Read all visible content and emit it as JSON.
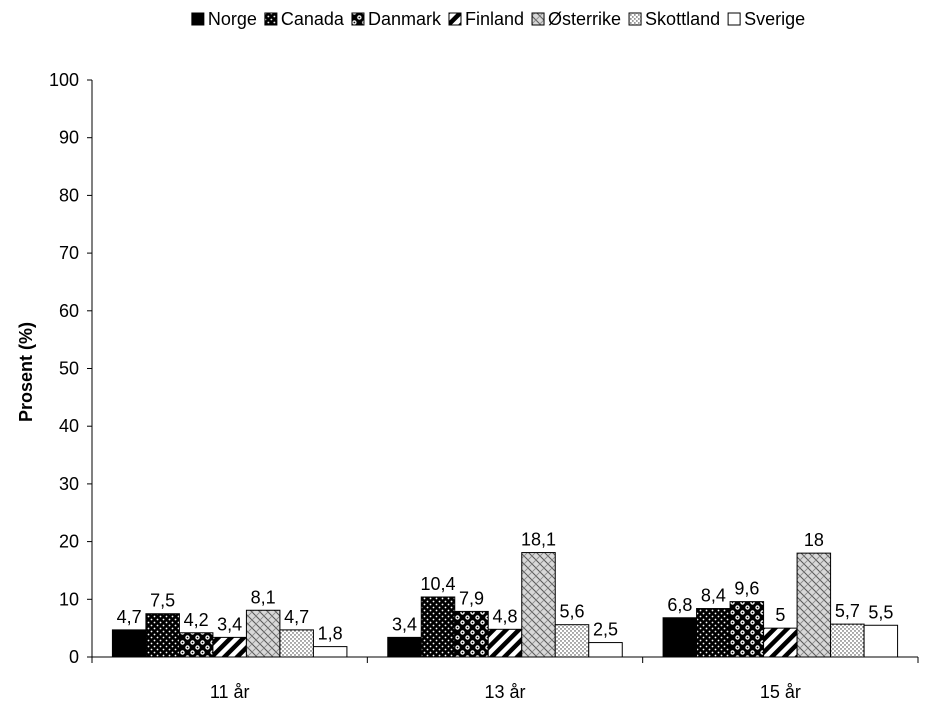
{
  "chart_data": {
    "type": "bar",
    "categories": [
      "11 år",
      "13 år",
      "15 år"
    ],
    "series": [
      {
        "name": "Norge",
        "values": [
          4.7,
          3.4,
          6.8
        ],
        "labels": [
          "4,7",
          "3,4",
          "6,8"
        ],
        "pattern": "solid-black"
      },
      {
        "name": "Canada",
        "values": [
          7.5,
          10.4,
          8.4
        ],
        "labels": [
          "7,5",
          "10,4",
          "8,4"
        ],
        "pattern": "dots-on-black"
      },
      {
        "name": "Danmark",
        "values": [
          4.2,
          7.9,
          9.6
        ],
        "labels": [
          "4,2",
          "7,9",
          "9,6"
        ],
        "pattern": "checker-circles"
      },
      {
        "name": "Finland",
        "values": [
          3.4,
          4.8,
          5.0
        ],
        "labels": [
          "3,4",
          "4,8",
          "5"
        ],
        "pattern": "wide-diagonal"
      },
      {
        "name": "Østerrike",
        "values": [
          8.1,
          18.1,
          18.0
        ],
        "labels": [
          "8,1",
          "18,1",
          "18"
        ],
        "pattern": "weave-grey"
      },
      {
        "name": "Skottland",
        "values": [
          4.7,
          5.6,
          5.7
        ],
        "labels": [
          "4,7",
          "5,6",
          "5,7"
        ],
        "pattern": "fine-dots"
      },
      {
        "name": "Sverige",
        "values": [
          1.8,
          2.5,
          5.5
        ],
        "labels": [
          "1,8",
          "2,5",
          "5,5"
        ],
        "pattern": "white"
      }
    ],
    "ylabel": "Prosent (%)",
    "xlabel": "",
    "ylim": [
      0,
      100
    ],
    "yticks": [
      0,
      10,
      20,
      30,
      40,
      50,
      60,
      70,
      80,
      90,
      100
    ],
    "grid": false,
    "legend_position": "top"
  }
}
